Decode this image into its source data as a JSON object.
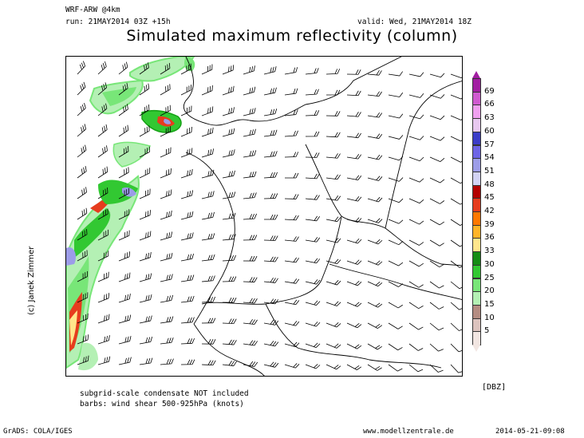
{
  "header": {
    "model": "WRF-ARW @4km",
    "run": "run: 21MAY2014 03Z +15h",
    "valid": "valid: Wed, 21MAY2014 18Z"
  },
  "title": "Simulated maximum reflectivity (column)",
  "credit": "(c) Janek Zimmer",
  "notes": {
    "line1": "subgrid-scale condensate NOT included",
    "line2": "barbs: wind shear 500-925hPa (knots)"
  },
  "footer": {
    "left": "GrADS: COLA/IGES",
    "center": "www.modellzentrale.de",
    "right": "2014-05-21-09:08"
  },
  "colorbar": {
    "unit": "[DBZ]",
    "labels": [
      "69",
      "66",
      "63",
      "60",
      "57",
      "54",
      "51",
      "48",
      "45",
      "42",
      "39",
      "36",
      "33",
      "30",
      "25",
      "20",
      "15",
      "10",
      "5"
    ],
    "colors": [
      "#a21ea2",
      "#d05ad0",
      "#f0a0f0",
      "#e8c8f0",
      "#3c3cc8",
      "#6e64e6",
      "#9c9ce8",
      "#d2d2f4",
      "#b40000",
      "#e63c1e",
      "#ff7800",
      "#ffb428",
      "#ffe68c",
      "#148c14",
      "#32c832",
      "#78e678",
      "#b4f0b4",
      "#b48c82",
      "#dcc3be",
      "#f2e6e2"
    ]
  }
}
